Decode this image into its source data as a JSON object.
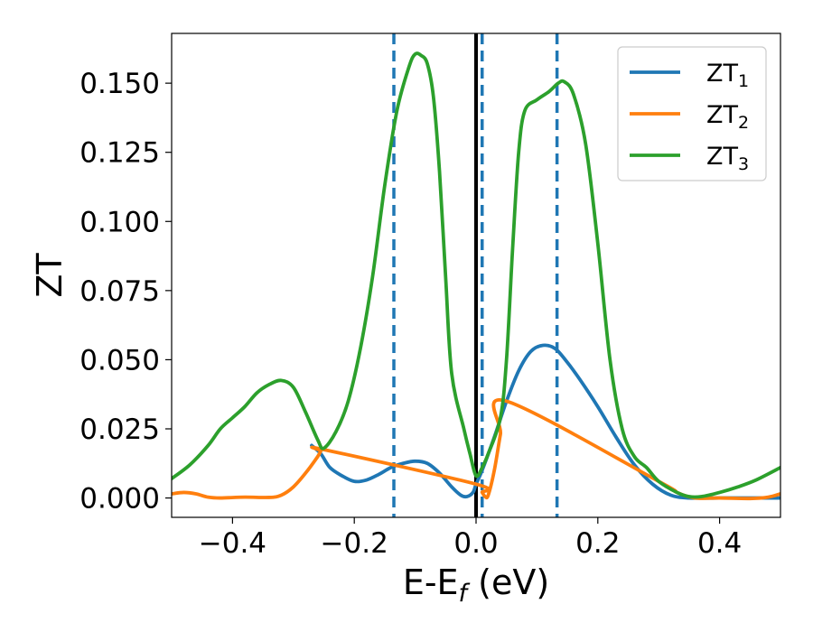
{
  "chart_data": {
    "type": "line",
    "xlabel": "E-E",
    "xlabel_subscript": "f",
    "xlabel_unit": " (eV)",
    "ylabel": "ZT",
    "xlim": [
      -0.5,
      0.5
    ],
    "ylim": [
      -0.007,
      0.168
    ],
    "xticks": [
      -0.4,
      -0.2,
      0.0,
      0.2,
      0.4
    ],
    "xtick_labels": [
      "−0.4",
      "−0.2",
      "0.0",
      "0.2",
      "0.4"
    ],
    "yticks": [
      0.0,
      0.025,
      0.05,
      0.075,
      0.1,
      0.125,
      0.15
    ],
    "ytick_labels": [
      "0.000",
      "0.025",
      "0.050",
      "0.075",
      "0.100",
      "0.125",
      "0.150"
    ],
    "grid": false,
    "legend_position": "top-right",
    "vertical_lines": [
      {
        "x": -0.135,
        "style": "dashed",
        "color": "#1f77b4"
      },
      {
        "x": 0.01,
        "style": "dashed",
        "color": "#1f77b4"
      },
      {
        "x": 0.133,
        "style": "dashed",
        "color": "#1f77b4"
      },
      {
        "x": 0.0,
        "style": "solid",
        "color": "#000000"
      }
    ],
    "series": [
      {
        "name": "ZT",
        "subscript": "1",
        "color": "#1f77b4",
        "points": [
          [
            -0.27,
            0.019
          ],
          [
            -0.255,
            0.016
          ],
          [
            -0.24,
            0.011
          ],
          [
            -0.22,
            0.008
          ],
          [
            -0.2,
            0.006
          ],
          [
            -0.18,
            0.0065
          ],
          [
            -0.16,
            0.0085
          ],
          [
            -0.14,
            0.011
          ],
          [
            -0.12,
            0.0125
          ],
          [
            -0.1,
            0.0133
          ],
          [
            -0.08,
            0.0125
          ],
          [
            -0.06,
            0.009
          ],
          [
            -0.04,
            0.004
          ],
          [
            -0.025,
            0.001
          ],
          [
            -0.015,
            0.0005
          ],
          [
            -0.005,
            0.002
          ],
          [
            0.0,
            0.005
          ],
          [
            0.01,
            0.01
          ],
          [
            0.03,
            0.022
          ],
          [
            0.05,
            0.035
          ],
          [
            0.07,
            0.046
          ],
          [
            0.09,
            0.053
          ],
          [
            0.11,
            0.0552
          ],
          [
            0.13,
            0.054
          ],
          [
            0.15,
            0.049
          ],
          [
            0.17,
            0.043
          ],
          [
            0.2,
            0.033
          ],
          [
            0.23,
            0.022
          ],
          [
            0.26,
            0.012
          ],
          [
            0.29,
            0.005
          ],
          [
            0.32,
            0.001
          ],
          [
            0.35,
            0.0
          ],
          [
            0.4,
            0.0
          ],
          [
            0.45,
            0.0
          ],
          [
            0.5,
            0.0
          ]
        ]
      },
      {
        "name": "ZT",
        "subscript": "2",
        "color": "#ff7f0e",
        "points": [
          [
            -0.5,
            0.0015
          ],
          [
            -0.48,
            0.002
          ],
          [
            -0.46,
            0.0015
          ],
          [
            -0.44,
            0.0003
          ],
          [
            -0.42,
            0.0
          ],
          [
            -0.38,
            0.0003
          ],
          [
            -0.34,
            0.0002
          ],
          [
            -0.32,
            0.001
          ],
          [
            -0.3,
            0.004
          ],
          [
            -0.28,
            0.009
          ],
          [
            -0.26,
            0.015
          ],
          [
            -0.255,
            0.017
          ],
          [
            -0.25,
            0.0175
          ],
          [
            0.0,
            0.005
          ],
          [
            0.01,
            0.002
          ],
          [
            0.015,
            0.0005
          ],
          [
            0.02,
            0.001
          ],
          [
            0.03,
            0.01
          ],
          [
            0.04,
            0.023
          ],
          [
            0.05,
            0.035
          ],
          [
            0.3,
            0.006
          ],
          [
            0.33,
            0.002
          ],
          [
            0.36,
            0.0
          ],
          [
            0.4,
            0.0
          ],
          [
            0.45,
            -0.0002
          ],
          [
            0.48,
            0.0003
          ],
          [
            0.5,
            0.0015
          ]
        ]
      },
      {
        "name": "ZT",
        "subscript": "3",
        "color": "#2ca02c",
        "points": [
          [
            -0.5,
            0.007
          ],
          [
            -0.47,
            0.012
          ],
          [
            -0.44,
            0.019
          ],
          [
            -0.42,
            0.025
          ],
          [
            -0.4,
            0.029
          ],
          [
            -0.38,
            0.033
          ],
          [
            -0.36,
            0.038
          ],
          [
            -0.34,
            0.041
          ],
          [
            -0.32,
            0.0425
          ],
          [
            -0.3,
            0.04
          ],
          [
            -0.28,
            0.031
          ],
          [
            -0.26,
            0.021
          ],
          [
            -0.25,
            0.018
          ],
          [
            -0.23,
            0.024
          ],
          [
            -0.21,
            0.035
          ],
          [
            -0.19,
            0.054
          ],
          [
            -0.17,
            0.08
          ],
          [
            -0.15,
            0.113
          ],
          [
            -0.13,
            0.14
          ],
          [
            -0.11,
            0.156
          ],
          [
            -0.1,
            0.1605
          ],
          [
            -0.09,
            0.16
          ],
          [
            -0.08,
            0.157
          ],
          [
            -0.07,
            0.145
          ],
          [
            -0.06,
            0.118
          ],
          [
            -0.05,
            0.08
          ],
          [
            -0.04,
            0.045
          ],
          [
            -0.02,
            0.025
          ],
          [
            -0.01,
            0.016
          ],
          [
            0.0,
            0.008
          ],
          [
            0.01,
            0.011
          ],
          [
            0.02,
            0.016
          ],
          [
            0.04,
            0.029
          ],
          [
            0.05,
            0.05
          ],
          [
            0.06,
            0.09
          ],
          [
            0.07,
            0.125
          ],
          [
            0.08,
            0.14
          ],
          [
            0.1,
            0.144
          ],
          [
            0.12,
            0.147
          ],
          [
            0.135,
            0.15
          ],
          [
            0.145,
            0.1505
          ],
          [
            0.16,
            0.146
          ],
          [
            0.18,
            0.128
          ],
          [
            0.2,
            0.092
          ],
          [
            0.22,
            0.05
          ],
          [
            0.24,
            0.025
          ],
          [
            0.26,
            0.015
          ],
          [
            0.28,
            0.011
          ],
          [
            0.3,
            0.006
          ],
          [
            0.33,
            0.002
          ],
          [
            0.35,
            0.0005
          ],
          [
            0.37,
            0.0005
          ],
          [
            0.4,
            0.002
          ],
          [
            0.43,
            0.004
          ],
          [
            0.46,
            0.0065
          ],
          [
            0.5,
            0.011
          ]
        ]
      }
    ]
  }
}
